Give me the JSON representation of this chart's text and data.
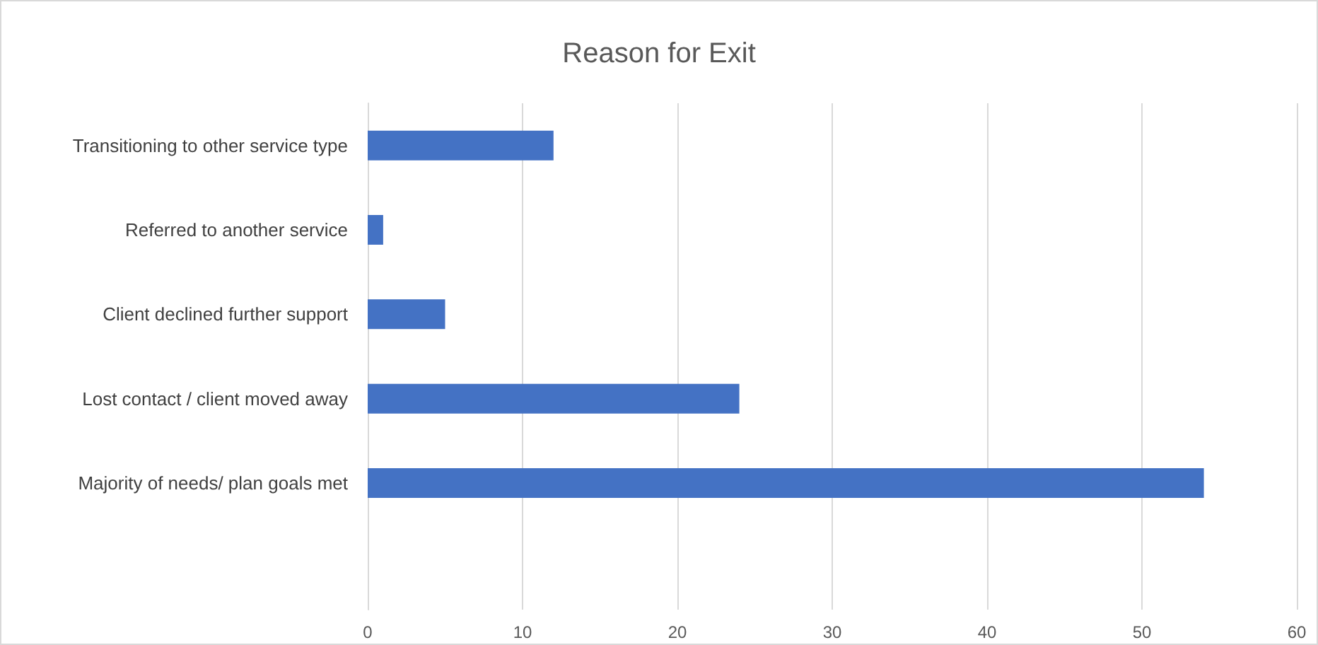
{
  "chart_data": {
    "type": "bar",
    "orientation": "horizontal",
    "title": "Reason for Exit",
    "categories": [
      "Transitioning to other service type",
      "Referred to another service",
      "Client declined further support",
      "Lost contact / client moved away",
      "Majority of needs/ plan goals met",
      null
    ],
    "values": [
      12,
      1,
      5,
      24,
      54,
      null
    ],
    "color": "#4472c4",
    "xlim": [
      0,
      60
    ],
    "xticks": [
      0,
      10,
      20,
      30,
      40,
      50,
      60
    ],
    "grid": "x"
  }
}
